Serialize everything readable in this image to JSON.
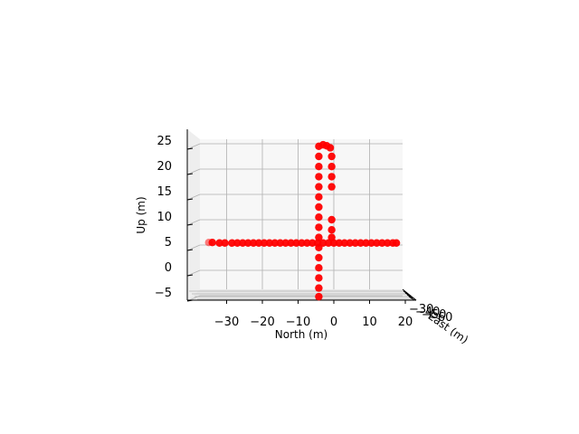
{
  "chart_data": {
    "type": "scatter",
    "projection": "3d",
    "xlabel": "North (m)",
    "ylabel": "East (m)",
    "zlabel": "Up (m)",
    "x_ticks": [
      "−30",
      "−20",
      "−10",
      "0",
      "10",
      "20"
    ],
    "z_ticks": [
      "−5",
      "0",
      "5",
      "10",
      "15",
      "20",
      "25"
    ],
    "east_ticks": [
      "−30",
      "−40",
      "−50",
      "−60"
    ],
    "xlim": [
      -38,
      20
    ],
    "zlim": [
      -6,
      26
    ],
    "grid": true,
    "marker_color": "#ff0000",
    "series": [
      {
        "points_xz": [
          [
            -35,
            5.5
          ],
          [
            -34,
            5.5
          ],
          [
            -32,
            5.4
          ],
          [
            -30.5,
            5.4
          ],
          [
            -28.5,
            5.4
          ],
          [
            -27,
            5.4
          ],
          [
            -25.5,
            5.4
          ],
          [
            -24,
            5.4
          ],
          [
            -22.5,
            5.4
          ],
          [
            -21,
            5.4
          ],
          [
            -19.5,
            5.4
          ],
          [
            -18,
            5.4
          ],
          [
            -16.5,
            5.4
          ],
          [
            -15,
            5.4
          ],
          [
            -13.5,
            5.4
          ],
          [
            -12,
            5.4
          ],
          [
            -10.5,
            5.4
          ],
          [
            -9,
            5.4
          ],
          [
            -7.5,
            5.4
          ],
          [
            -6,
            5.4
          ],
          [
            -4.5,
            5.4
          ],
          [
            -3,
            5.4
          ],
          [
            -1.5,
            5.4
          ],
          [
            0,
            5.4
          ],
          [
            1.5,
            5.4
          ],
          [
            3,
            5.4
          ],
          [
            4.5,
            5.4
          ],
          [
            6,
            5.4
          ],
          [
            7.5,
            5.4
          ],
          [
            9,
            5.4
          ],
          [
            10.5,
            5.4
          ],
          [
            12,
            5.4
          ],
          [
            13.5,
            5.4
          ],
          [
            15,
            5.4
          ],
          [
            16.5,
            5.4
          ],
          [
            17.5,
            5.4
          ],
          [
            -4.2,
            24.5
          ],
          [
            -4.2,
            22.5
          ],
          [
            -4.2,
            20.5
          ],
          [
            -4.2,
            18.5
          ],
          [
            -4.2,
            16.5
          ],
          [
            -4.2,
            14.5
          ],
          [
            -4.2,
            12.5
          ],
          [
            -4.2,
            10.5
          ],
          [
            -4.2,
            8.5
          ],
          [
            -4.2,
            6.5
          ],
          [
            -4.2,
            4.5
          ],
          [
            -4.2,
            2.5
          ],
          [
            -4.2,
            0.5
          ],
          [
            -4.2,
            -1.5
          ],
          [
            -4.2,
            -3.5
          ],
          [
            -4.2,
            -5.2
          ],
          [
            -3,
            24.8
          ],
          [
            -2,
            24.6
          ],
          [
            -1,
            24.2
          ],
          [
            -0.6,
            22.5
          ],
          [
            -0.6,
            20.5
          ],
          [
            -0.6,
            18.5
          ],
          [
            -0.6,
            16.5
          ],
          [
            -0.6,
            10
          ],
          [
            -0.6,
            8
          ],
          [
            -0.6,
            6.5
          ]
        ]
      }
    ]
  }
}
